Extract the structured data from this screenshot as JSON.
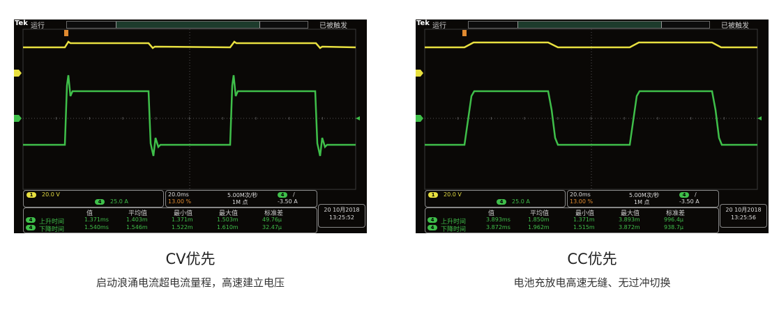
{
  "panels": [
    {
      "brand": "Tek",
      "run": "运行",
      "trigger_state": "已被触发",
      "ch1_scale": "20.0 V",
      "ch4_scale": "25.0 A",
      "ch1": "1",
      "ch4": "4",
      "timebase": "20.0ms",
      "sample_rate": "5.00M次/秒",
      "trig_pos": "13.00 %",
      "record": "1M 点",
      "trig_slope": "/",
      "trig_level": "-3.50 A",
      "meas_headers": [
        "值",
        "平均值",
        "最小值",
        "最大值",
        "标准差"
      ],
      "meas_rows": [
        {
          "label": "上升时间",
          "values": [
            "1.371ms",
            "1.403m",
            "1.371m",
            "1.503m",
            "49.76μ"
          ]
        },
        {
          "label": "下降时间",
          "values": [
            "1.540ms",
            "1.546m",
            "1.522m",
            "1.610m",
            "32.47μ"
          ]
        }
      ],
      "date": "20 10月2018",
      "time": "13:25:52",
      "title": "CV优先",
      "subtitle": "启动浪涌电流超电流量程，高速建立电压"
    },
    {
      "brand": "Tek",
      "run": "运行",
      "trigger_state": "已被触发",
      "ch1_scale": "20.0 V",
      "ch4_scale": "25.0 A",
      "ch1": "1",
      "ch4": "4",
      "timebase": "20.0ms",
      "sample_rate": "5.00M次/秒",
      "trig_pos": "13.00 %",
      "record": "1M 点",
      "trig_slope": "/",
      "trig_level": "-3.50 A",
      "meas_headers": [
        "值",
        "平均值",
        "最小值",
        "最大值",
        "标准差"
      ],
      "meas_rows": [
        {
          "label": "上升时间",
          "values": [
            "3.893ms",
            "1.850m",
            "1.371m",
            "3.893m",
            "996.4μ"
          ]
        },
        {
          "label": "下降时间",
          "values": [
            "3.872ms",
            "1.962m",
            "1.515m",
            "3.872m",
            "938.7μ"
          ]
        }
      ],
      "date": "20 10月2018",
      "time": "13:25:56",
      "title": "CC优先",
      "subtitle": "电池充放电高速无缝、无过冲切换"
    }
  ],
  "colors": {
    "ch1": "#e8e040",
    "ch4": "#3fbf4a",
    "screen": "#0a0806"
  }
}
